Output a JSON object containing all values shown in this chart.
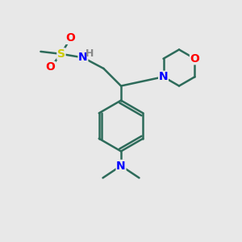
{
  "bg_color": "#e8e8e8",
  "bond_color": "#2d6b5a",
  "bond_width": 1.8,
  "atom_colors": {
    "S": "#cccc00",
    "O": "#ff0000",
    "N": "#0000ff",
    "H": "#888888",
    "C": "#2d6b5a"
  },
  "font_size": 10,
  "fig_size": [
    3.0,
    3.0
  ],
  "dpi": 100
}
